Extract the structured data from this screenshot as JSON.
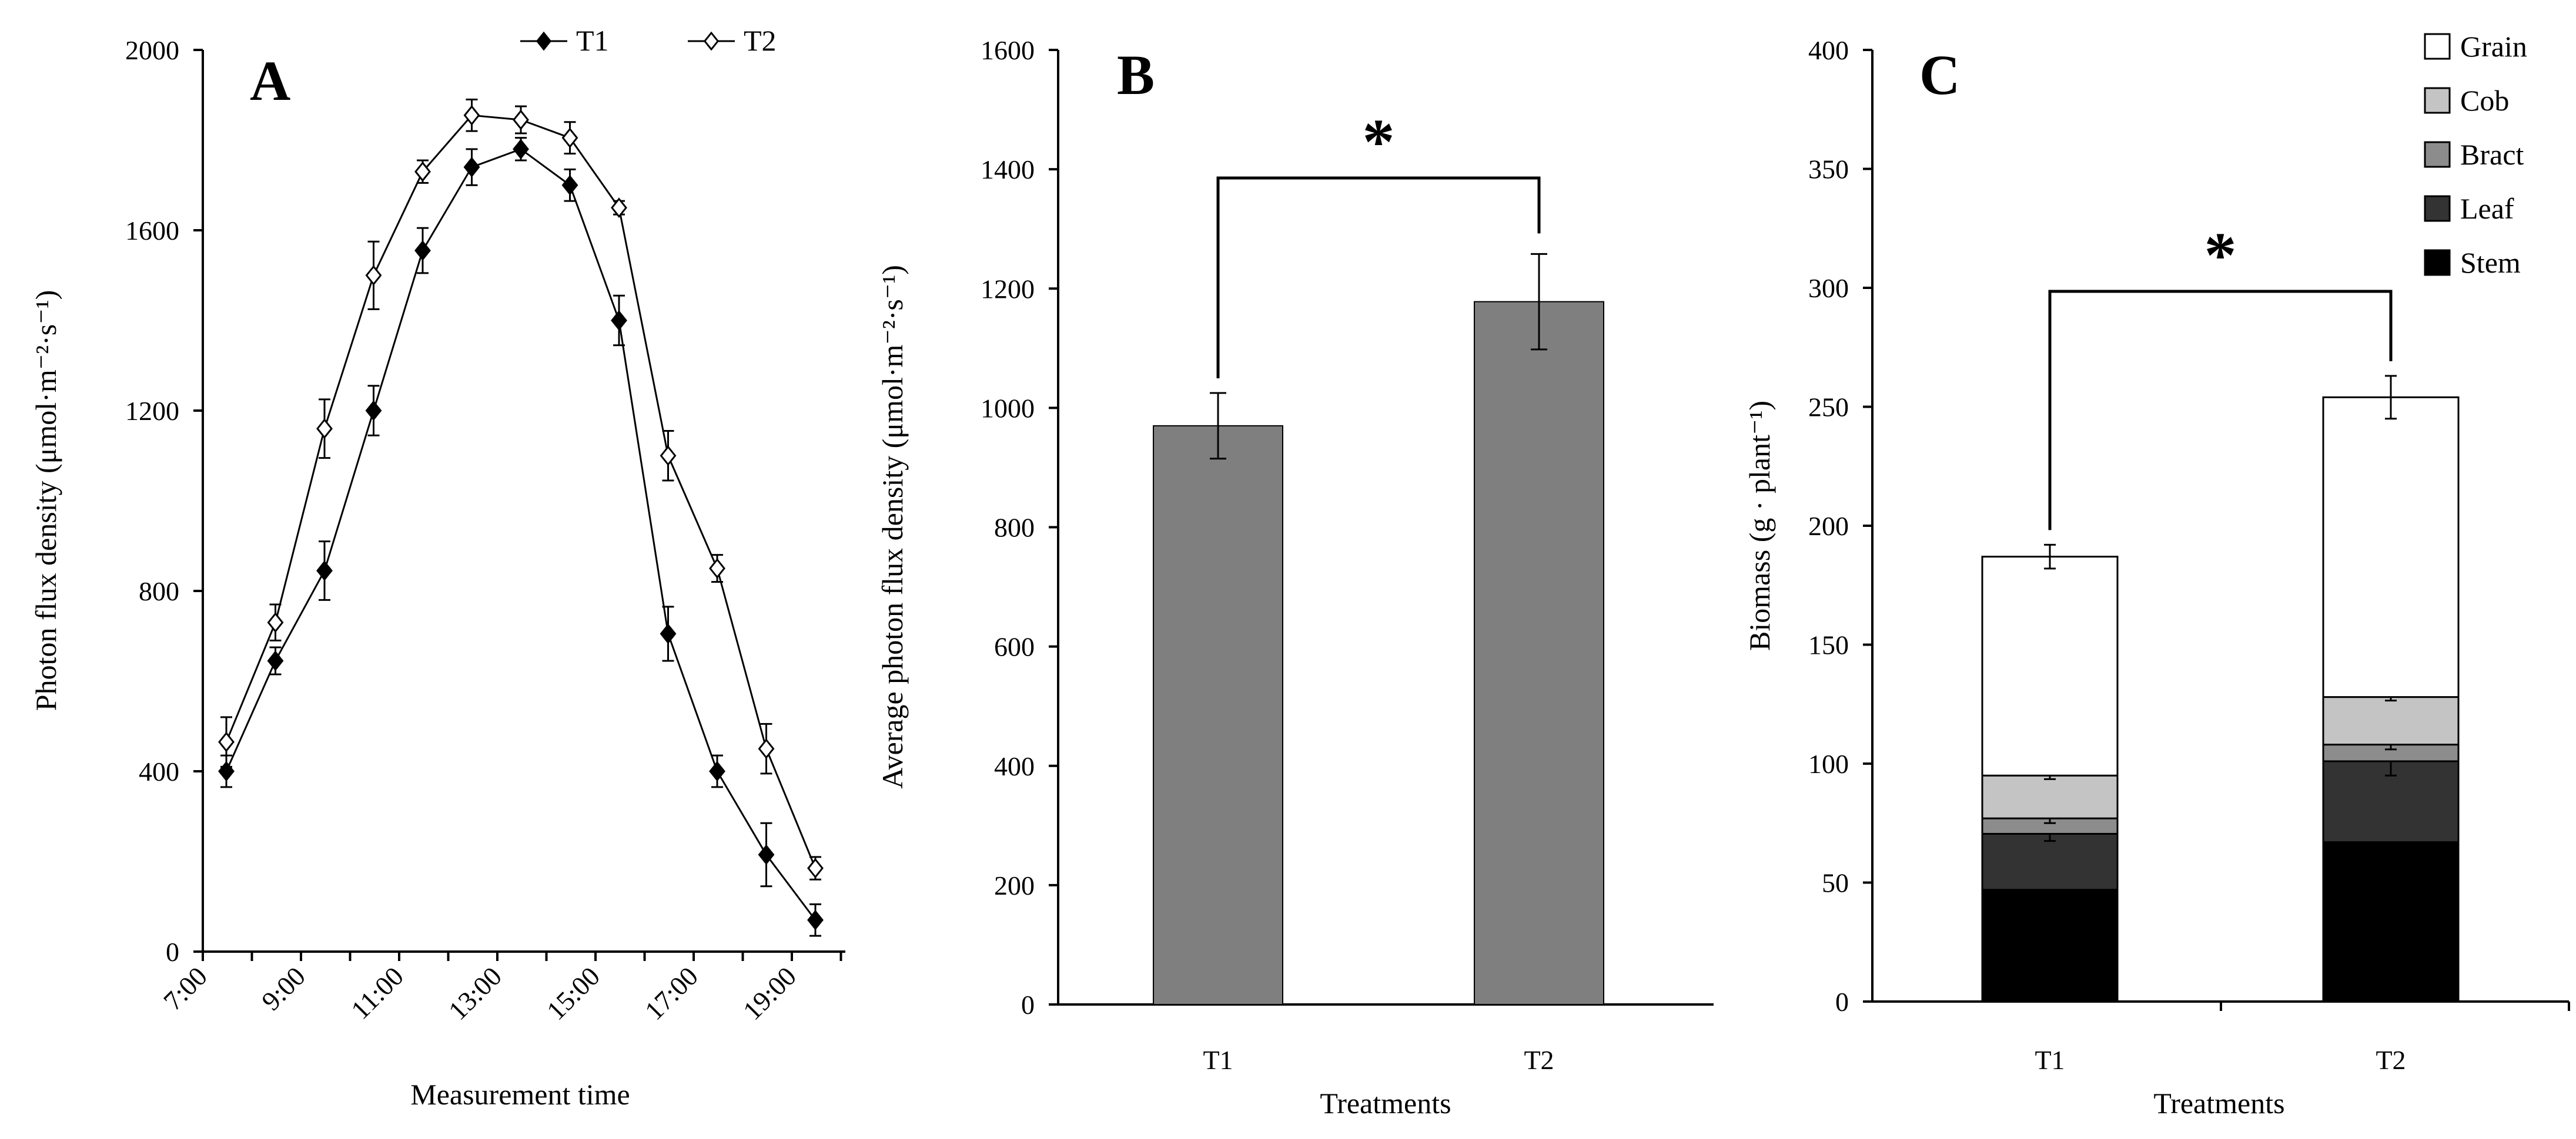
{
  "chart_data": [
    {
      "panel": "A",
      "type": "line",
      "x_positions": [
        1,
        2,
        3,
        4,
        5,
        6,
        7,
        8,
        9,
        10,
        11,
        12,
        13
      ],
      "x_tick_labels": [
        "7:00",
        "9:00",
        "11:00",
        "13:00",
        "15:00",
        "17:00",
        "19:00"
      ],
      "xlabel": "Measurement time",
      "ylabel": "Photon flux density (μmol·m⁻²·s⁻¹)",
      "ylim": [
        0,
        2000
      ],
      "yticks": [
        0,
        400,
        800,
        1200,
        1600,
        2000
      ],
      "legend_position": "top",
      "series": [
        {
          "name": "T1",
          "marker": "filled-diamond",
          "values": [
            400,
            645,
            845,
            1200,
            1555,
            1740,
            1780,
            1700,
            1400,
            705,
            400,
            215,
            70
          ],
          "errors": [
            35,
            30,
            65,
            55,
            50,
            40,
            25,
            35,
            55,
            60,
            35,
            70,
            35
          ]
        },
        {
          "name": "T2",
          "marker": "open-diamond",
          "values": [
            465,
            730,
            1160,
            1500,
            1730,
            1855,
            1845,
            1805,
            1650,
            1100,
            850,
            450,
            185
          ],
          "errors": [
            55,
            40,
            65,
            75,
            25,
            35,
            30,
            35,
            15,
            55,
            30,
            55,
            25
          ]
        }
      ]
    },
    {
      "panel": "B",
      "type": "bar",
      "categories": [
        "T1",
        "T2"
      ],
      "values": [
        970,
        1178
      ],
      "errors": [
        55,
        80
      ],
      "xlabel": "Treatments",
      "ylabel": "Average photon flux density (μmol·m⁻²·s⁻¹)",
      "ylim": [
        0,
        1600
      ],
      "yticks": [
        0,
        200,
        400,
        600,
        800,
        1000,
        1200,
        1400,
        1600
      ],
      "significance": "*"
    },
    {
      "panel": "C",
      "type": "stacked-bar",
      "categories": [
        "T1",
        "T2"
      ],
      "xlabel": "Treatments",
      "ylabel": "Biomass (g · plant⁻¹)",
      "ylim": [
        0,
        400
      ],
      "yticks": [
        0,
        50,
        100,
        150,
        200,
        250,
        300,
        350,
        400
      ],
      "significance": "*",
      "legend_position": "top-right",
      "series": [
        {
          "name": "Stem",
          "color": "#000000",
          "values": [
            47,
            67
          ],
          "cumulative_errors": [
            7,
            10
          ]
        },
        {
          "name": "Leaf",
          "color": "#333333",
          "values": [
            23.5,
            34
          ],
          "cumulative_errors": [
            3,
            6
          ]
        },
        {
          "name": "Bract",
          "color": "#8c8c8c",
          "values": [
            6.5,
            7
          ],
          "cumulative_errors": [
            2,
            2
          ]
        },
        {
          "name": "Cob",
          "color": "#c4c4c4",
          "values": [
            18,
            20
          ],
          "cumulative_errors": [
            1.5,
            1.5
          ]
        },
        {
          "name": "Grain",
          "color": "#ffffff",
          "values": [
            92,
            126
          ],
          "cumulative_errors": [
            5,
            9
          ]
        }
      ],
      "legend_order": [
        "Grain",
        "Cob",
        "Bract",
        "Leaf",
        "Stem"
      ]
    }
  ]
}
